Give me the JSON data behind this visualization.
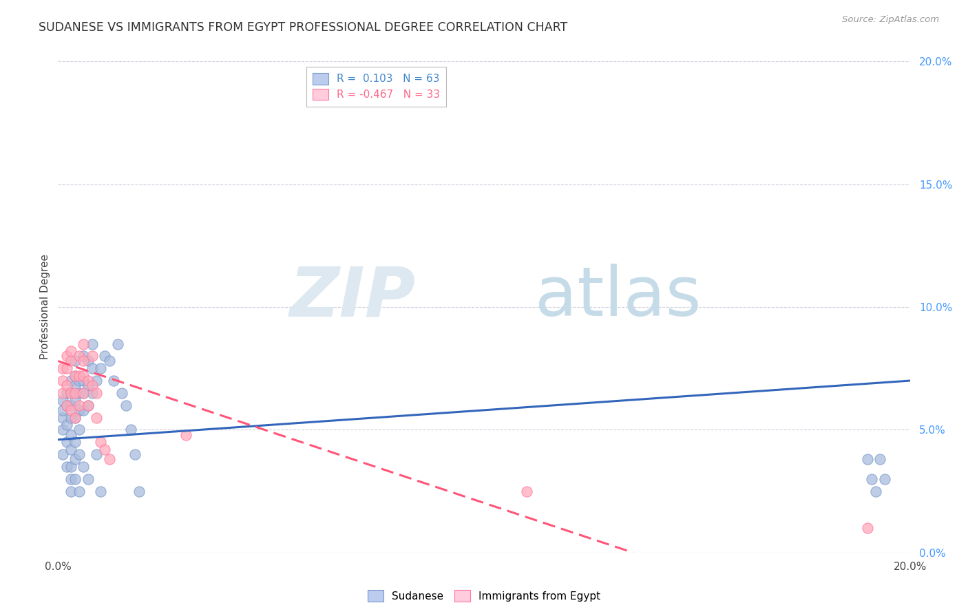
{
  "title": "SUDANESE VS IMMIGRANTS FROM EGYPT PROFESSIONAL DEGREE CORRELATION CHART",
  "source": "Source: ZipAtlas.com",
  "ylabel": "Professional Degree",
  "series1_label": "Sudanese",
  "series2_label": "Immigrants from Egypt",
  "series1_scatter_color": "#aabbdd",
  "series2_scatter_color": "#ffaabb",
  "series1_edge_color": "#7799cc",
  "series2_edge_color": "#ff7799",
  "trend1_color": "#3366bb",
  "trend2_color": "#ff5577",
  "background_color": "#ffffff",
  "grid_color": "#ccccdd",
  "xlim": [
    0.0,
    0.2
  ],
  "ylim": [
    0.0,
    0.2
  ],
  "legend_label1": "R =  0.103   N = 63",
  "legend_label2": "R = -0.467   N = 33",
  "legend_color1": "#4488cc",
  "legend_color2": "#ff6688",
  "series1_x": [
    0.001,
    0.001,
    0.001,
    0.001,
    0.001,
    0.002,
    0.002,
    0.002,
    0.002,
    0.002,
    0.003,
    0.003,
    0.003,
    0.003,
    0.003,
    0.003,
    0.003,
    0.003,
    0.003,
    0.004,
    0.004,
    0.004,
    0.004,
    0.004,
    0.004,
    0.004,
    0.004,
    0.005,
    0.005,
    0.005,
    0.005,
    0.005,
    0.005,
    0.006,
    0.006,
    0.006,
    0.006,
    0.006,
    0.007,
    0.007,
    0.007,
    0.007,
    0.008,
    0.008,
    0.008,
    0.009,
    0.009,
    0.01,
    0.01,
    0.011,
    0.012,
    0.013,
    0.014,
    0.015,
    0.016,
    0.017,
    0.018,
    0.019,
    0.19,
    0.191,
    0.192,
    0.193,
    0.194
  ],
  "series1_y": [
    0.05,
    0.055,
    0.058,
    0.062,
    0.04,
    0.045,
    0.052,
    0.06,
    0.065,
    0.035,
    0.042,
    0.048,
    0.055,
    0.06,
    0.065,
    0.07,
    0.035,
    0.03,
    0.025,
    0.045,
    0.055,
    0.062,
    0.068,
    0.072,
    0.078,
    0.03,
    0.038,
    0.05,
    0.058,
    0.065,
    0.07,
    0.04,
    0.025,
    0.058,
    0.065,
    0.07,
    0.08,
    0.035,
    0.06,
    0.068,
    0.078,
    0.03,
    0.065,
    0.075,
    0.085,
    0.07,
    0.04,
    0.075,
    0.025,
    0.08,
    0.078,
    0.07,
    0.085,
    0.065,
    0.06,
    0.05,
    0.04,
    0.025,
    0.038,
    0.03,
    0.025,
    0.038,
    0.03
  ],
  "series2_x": [
    0.001,
    0.001,
    0.001,
    0.002,
    0.002,
    0.002,
    0.002,
    0.003,
    0.003,
    0.003,
    0.003,
    0.004,
    0.004,
    0.004,
    0.005,
    0.005,
    0.005,
    0.006,
    0.006,
    0.006,
    0.006,
    0.007,
    0.007,
    0.008,
    0.008,
    0.009,
    0.009,
    0.01,
    0.011,
    0.012,
    0.03,
    0.11,
    0.19
  ],
  "series2_y": [
    0.065,
    0.07,
    0.075,
    0.06,
    0.068,
    0.075,
    0.08,
    0.058,
    0.065,
    0.078,
    0.082,
    0.055,
    0.065,
    0.072,
    0.06,
    0.072,
    0.08,
    0.065,
    0.072,
    0.078,
    0.085,
    0.06,
    0.07,
    0.068,
    0.08,
    0.055,
    0.065,
    0.045,
    0.042,
    0.038,
    0.048,
    0.025,
    0.01
  ],
  "trend1_x0": 0.0,
  "trend1_x1": 0.2,
  "trend1_y0": 0.046,
  "trend1_y1": 0.07,
  "trend2_x0": 0.0,
  "trend2_x1": 0.135,
  "trend2_y0": 0.078,
  "trend2_y1": 0.0
}
